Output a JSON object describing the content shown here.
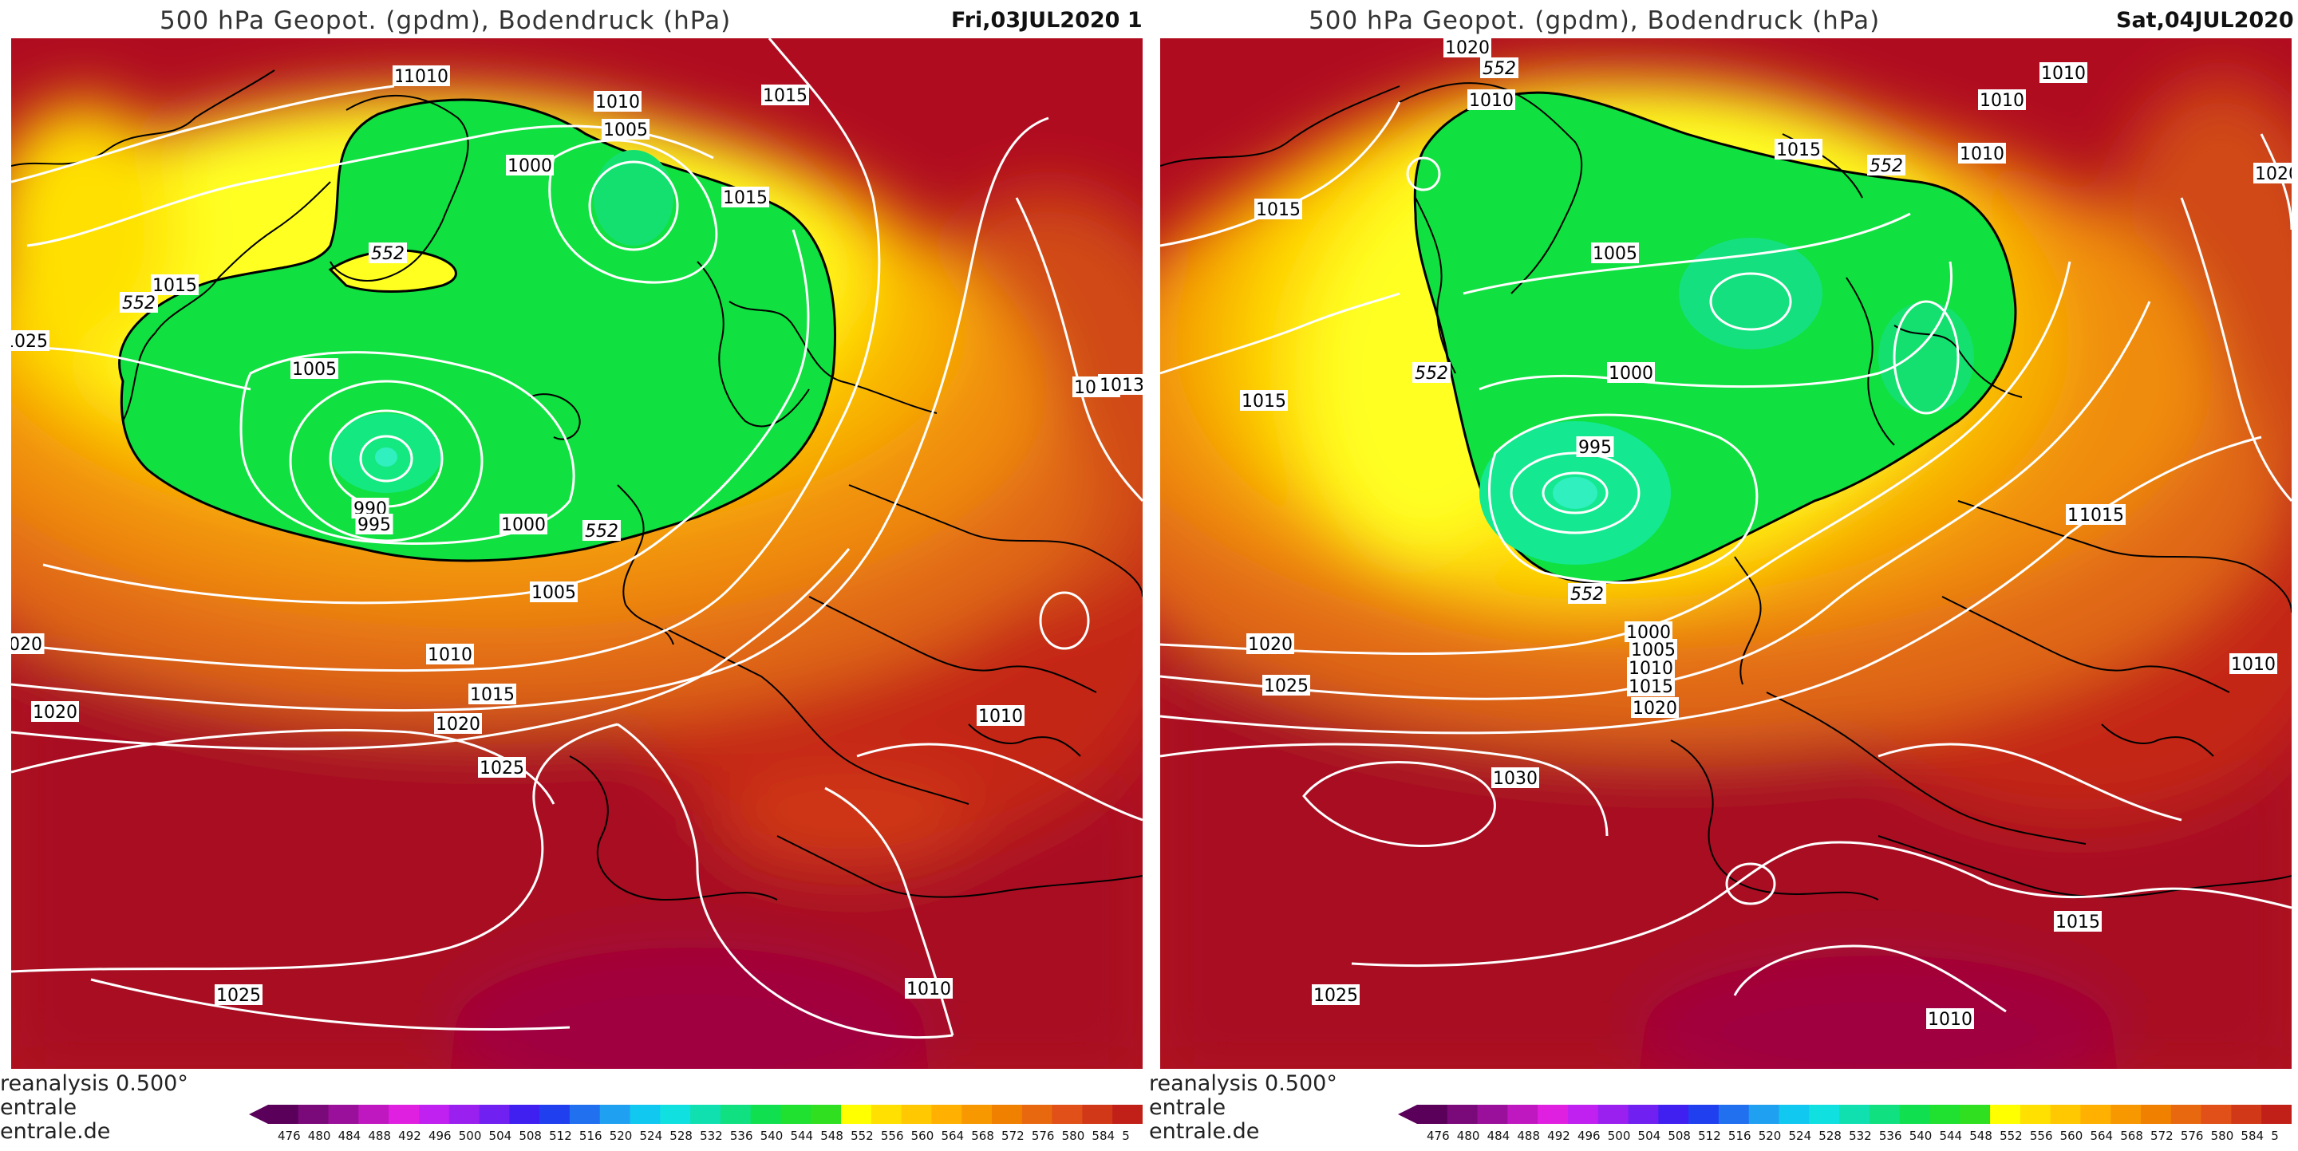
{
  "panels": [
    {
      "title": "500 hPa Geopot. (gpdm), Bodendruck (hPa)",
      "date": "Fri,03JUL2020 1",
      "credits": [
        "reanalysis 0.500°",
        "entrale",
        "entrale.de"
      ],
      "isobar_labels": [
        "1010",
        "1010",
        "1005",
        "1015",
        "1015",
        "1000",
        "1015",
        "1010",
        "020",
        "1005",
        "1005",
        "1013",
        "1015",
        "1000",
        "990",
        "995",
        "1005",
        "1010",
        "1015",
        "1020",
        "1020",
        "1025",
        "1025",
        "1010",
        "1025",
        "1010"
      ],
      "gpdm_labels": [
        "552",
        "552",
        "552"
      ]
    },
    {
      "title": "500 hPa Geopot. (gpdm), Bodendruck (hPa)",
      "date": "Sat,04JUL2020",
      "credits": [
        "reanalysis 0.500°",
        "entrale",
        "entrale.de"
      ],
      "isobar_labels": [
        "1020",
        "1010",
        "1010",
        "1015",
        "1010",
        "1010",
        "1020",
        "1015",
        "1015",
        "1005",
        "1000",
        "1015",
        "995",
        "1015",
        "1000",
        "1005",
        "1010",
        "1015",
        "1020",
        "1020",
        "1025",
        "1010",
        "1030",
        "1015",
        "1025",
        "1010"
      ],
      "gpdm_labels": [
        "552",
        "552",
        "552",
        "552"
      ]
    }
  ],
  "legend": {
    "ticks": [
      "476",
      "480",
      "484",
      "488",
      "492",
      "496",
      "500",
      "504",
      "508",
      "512",
      "516",
      "520",
      "524",
      "528",
      "532",
      "536",
      "540",
      "544",
      "548",
      "552",
      "556",
      "560",
      "564",
      "568",
      "572",
      "576",
      "580",
      "584",
      "5"
    ],
    "colors": [
      "#5a005a",
      "#7a0a7a",
      "#9a109a",
      "#c018c0",
      "#e020e0",
      "#c020f0",
      "#9a20f0",
      "#7020f0",
      "#4020f0",
      "#2040f0",
      "#2070f0",
      "#20a0f0",
      "#10c8f0",
      "#10e0e0",
      "#10e0b0",
      "#10e080",
      "#10e050",
      "#20e030",
      "#30e020",
      "#ffff00",
      "#ffe000",
      "#ffc800",
      "#ffb000",
      "#f89800",
      "#f08000",
      "#e86810",
      "#e05018",
      "#d03818",
      "#c02018"
    ]
  },
  "colors": {
    "gpdm_green": "#10e040",
    "yellow": "#ffff20",
    "orange": "#f09018",
    "red": "#c81818",
    "darkred": "#a80820",
    "isobar": "#ffffff",
    "coast": "#000000"
  }
}
